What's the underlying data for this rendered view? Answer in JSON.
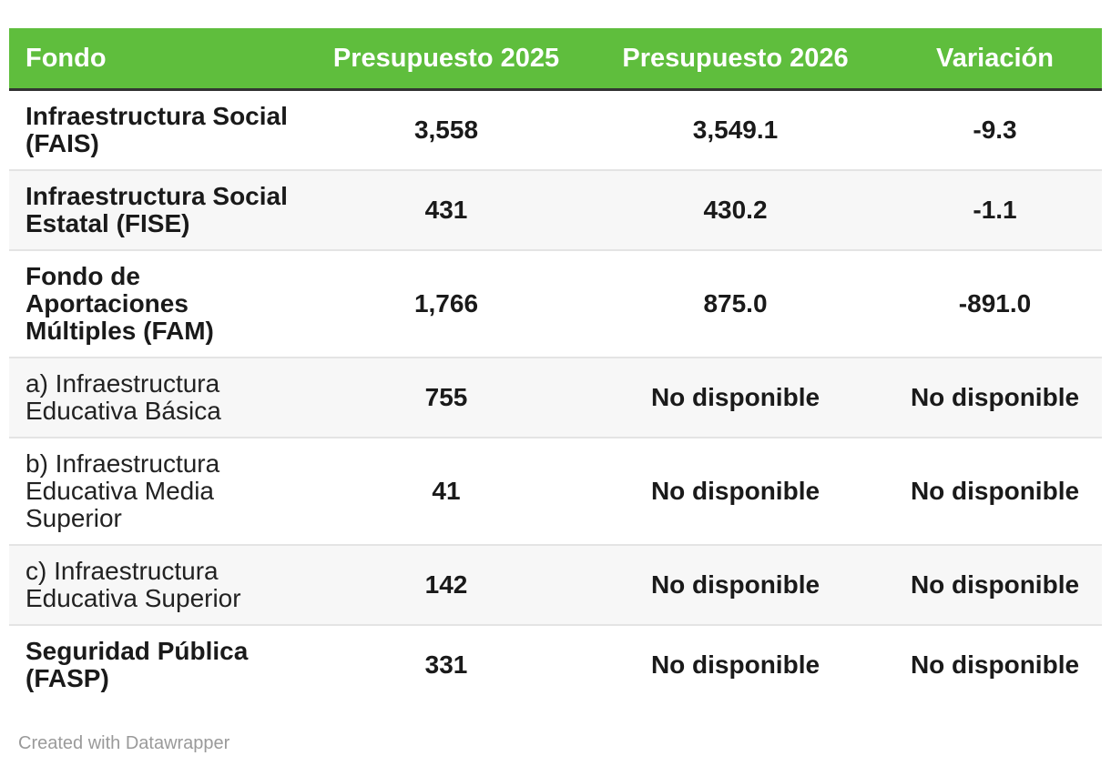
{
  "colors": {
    "header_bg": "#5fbe3d",
    "header_text": "#ffffff",
    "header_rule": "#333333",
    "zebra_row_bg": "#f7f7f7",
    "row_divider": "#e4e4e4",
    "body_text": "#1a1a1a",
    "attribution_text": "#9a9a9a"
  },
  "table": {
    "columns": [
      "Fondo",
      "Presupuesto 2025",
      "Presupuesto 2026",
      "Variación"
    ],
    "rows": [
      {
        "fondo": "Infraestructura Social (FAIS)",
        "p2025": "3,558",
        "p2026": "3,549.1",
        "variacion": "-9.3"
      },
      {
        "fondo": "Infraestructura Social Estatal (FISE)",
        "p2025": "431",
        "p2026": "430.2",
        "variacion": "-1.1"
      },
      {
        "fondo": "Fondo de Aportaciones Múltiples (FAM)",
        "p2025": "1,766",
        "p2026": "875.0",
        "variacion": "-891.0"
      },
      {
        "fondo": "a) Infraestructura Educativa Básica",
        "p2025": "755",
        "p2026": "No disponible",
        "variacion": "No disponible"
      },
      {
        "fondo": "b) Infraestructura Educativa Media Superior",
        "p2025": "41",
        "p2026": "No disponible",
        "variacion": "No disponible"
      },
      {
        "fondo": "c) Infraestructura Educativa Superior",
        "p2025": "142",
        "p2026": "No disponible",
        "variacion": "No disponible"
      },
      {
        "fondo": "Seguridad Pública (FASP)",
        "p2025": "331",
        "p2026": "No disponible",
        "variacion": "No disponible"
      }
    ]
  },
  "footer": {
    "attribution": "Created with Datawrapper"
  },
  "chart_data": {
    "type": "table",
    "columns": [
      "Fondo",
      "Presupuesto 2025",
      "Presupuesto 2026",
      "Variación"
    ],
    "rows": [
      [
        "Infraestructura Social (FAIS)",
        "3,558",
        "3,549.1",
        "-9.3"
      ],
      [
        "Infraestructura Social Estatal (FISE)",
        "431",
        "430.2",
        "-1.1"
      ],
      [
        "Fondo de Aportaciones Múltiples (FAM)",
        "1,766",
        "875.0",
        "-891.0"
      ],
      [
        "a) Infraestructura Educativa Básica",
        "755",
        "No disponible",
        "No disponible"
      ],
      [
        "b) Infraestructura Educativa Media Superior",
        "41",
        "No disponible",
        "No disponible"
      ],
      [
        "c) Infraestructura Educativa Superior",
        "142",
        "No disponible",
        "No disponible"
      ],
      [
        "Seguridad Pública (FASP)",
        "331",
        "No disponible",
        "No disponible"
      ]
    ],
    "layout_hints": {
      "header_style": "green background, white bold text, centered numeric columns",
      "zebra_striping": true,
      "bold_label_rows": [
        0,
        1,
        2,
        6
      ],
      "normal_label_rows": [
        3,
        4,
        5
      ]
    }
  }
}
